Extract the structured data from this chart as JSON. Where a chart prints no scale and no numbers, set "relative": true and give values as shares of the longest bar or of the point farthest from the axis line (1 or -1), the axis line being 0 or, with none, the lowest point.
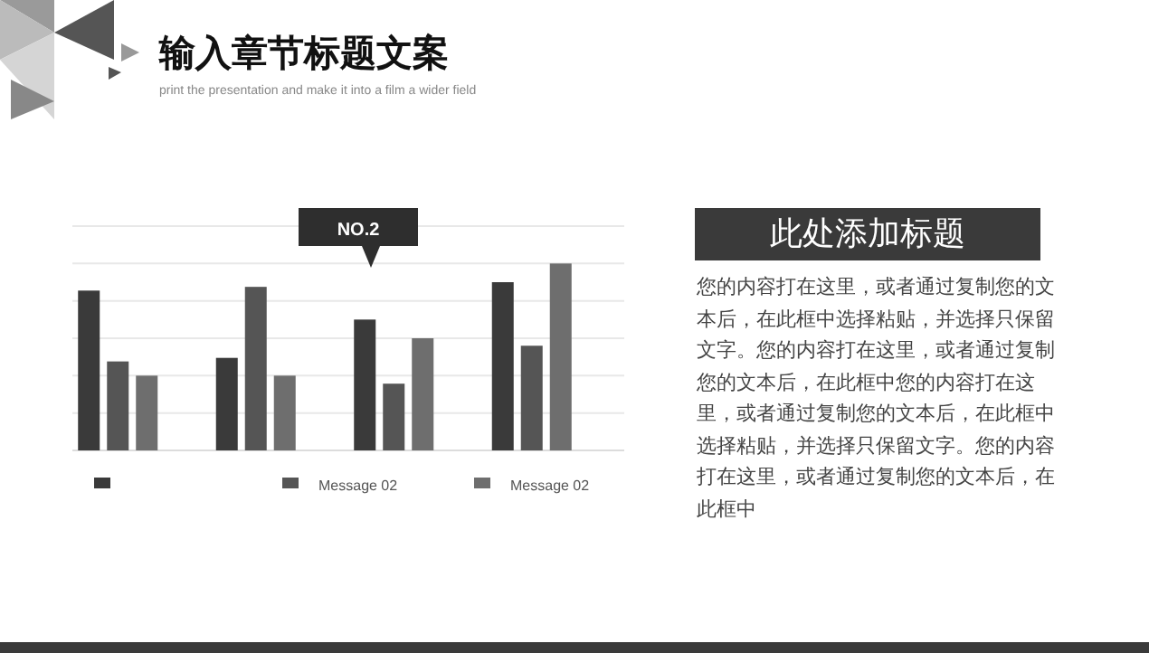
{
  "chart_data": {
    "type": "bar",
    "title": "输入章节标题文案",
    "subtitle": "print the presentation and make it into a film a wider field",
    "categories": [
      null,
      null,
      null,
      null
    ],
    "relative": true,
    "grid": "y",
    "legend": "bottom",
    "series": [
      {
        "color": "#3a3a3a",
        "values": [
          0.855,
          0.495,
          0.7,
          0.9
        ]
      },
      {
        "name": "Message 02",
        "color": "#555555",
        "values": [
          0.476,
          0.875,
          0.357,
          0.56
        ]
      },
      {
        "name": "Message 02",
        "color": "#6e6e6e",
        "values": [
          0.4,
          0.4,
          0.6,
          1.0
        ]
      }
    ],
    "annotations": [
      "NO.2",
      "此处添加标题",
      "您的内容打在这里，或者通过复制您的文本后，在此框中选择粘贴，并选择只保留文字。您的内容打在这里，或者通过复制您的文本后，在此框中您的内容打在这里，或者通过复制您的文本后，在此框中选择粘贴，并选择只保留文字。您的内容打在这里，或者通过复制您的文本后，在此框中"
    ]
  }
}
